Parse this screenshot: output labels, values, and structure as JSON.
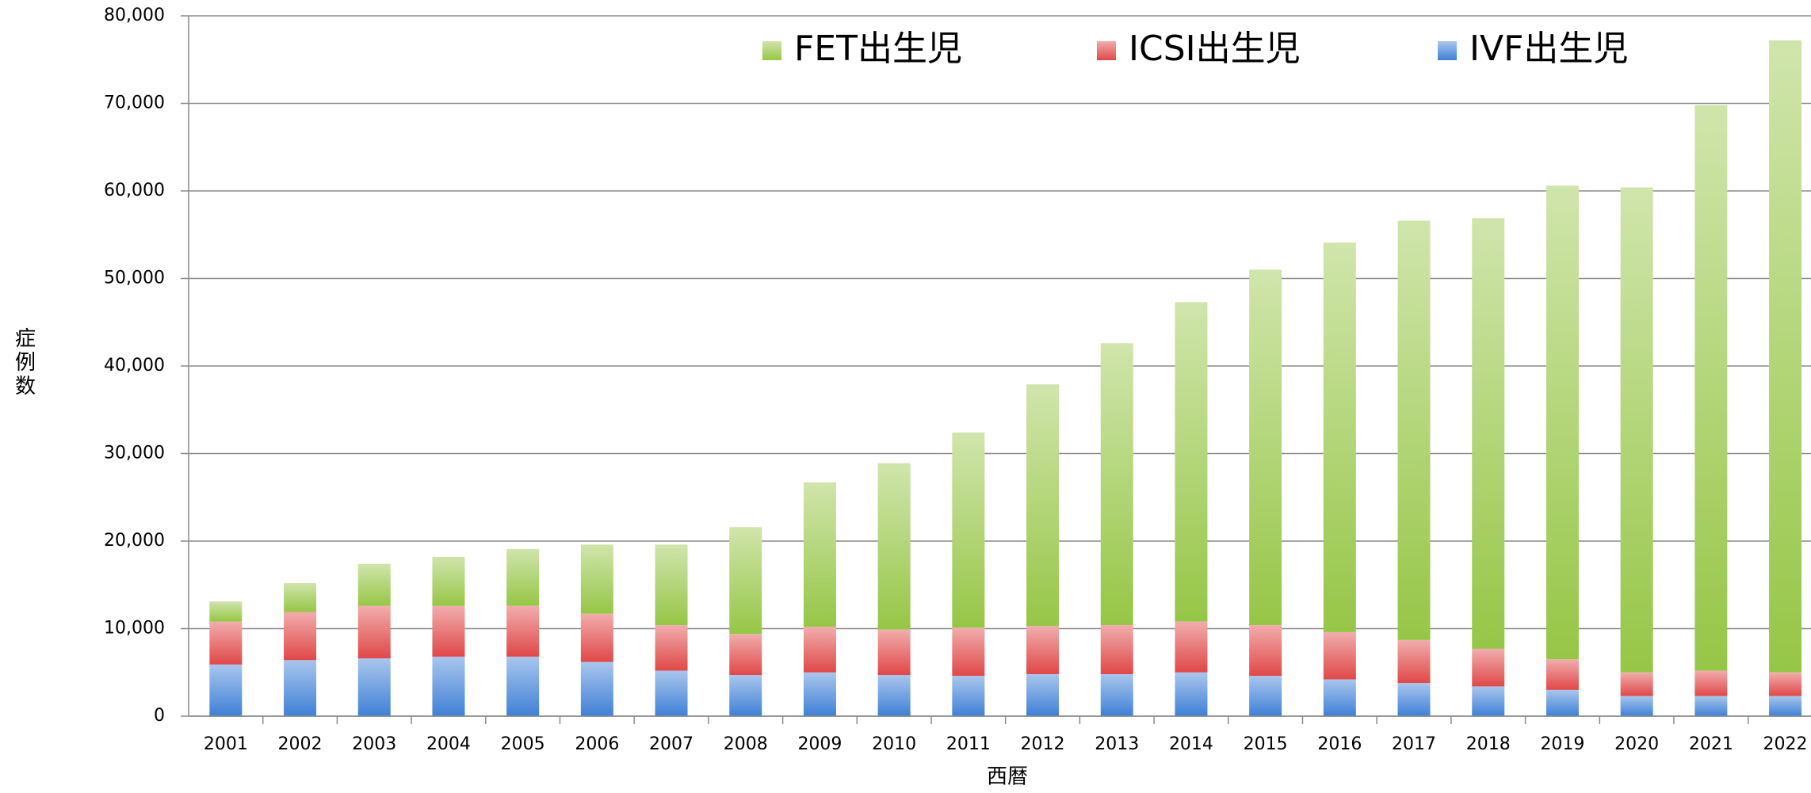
{
  "chart_data": {
    "type": "stacked-bar",
    "x_label": "西暦",
    "y_label": "症例数",
    "categories": [
      "2001",
      "2002",
      "2003",
      "2004",
      "2005",
      "2006",
      "2007",
      "2008",
      "2009",
      "2010",
      "2011",
      "2012",
      "2013",
      "2014",
      "2015",
      "2016",
      "2017",
      "2018",
      "2019",
      "2020",
      "2021",
      "2022"
    ],
    "series": [
      {
        "name": "IVF出生児",
        "color": "#3f80d6",
        "values": [
          5900,
          6400,
          6600,
          6800,
          6800,
          6200,
          5200,
          4700,
          5000,
          4700,
          4600,
          4800,
          4800,
          5000,
          4600,
          4200,
          3800,
          3400,
          3000,
          2300,
          2300,
          2300
        ]
      },
      {
        "name": "ICSI出生児",
        "color": "#e04848",
        "values": [
          4900,
          5500,
          6000,
          5800,
          5800,
          5500,
          5200,
          4700,
          5200,
          5200,
          5500,
          5500,
          5600,
          5800,
          5800,
          5400,
          4900,
          4300,
          3500,
          2700,
          2900,
          2700
        ]
      },
      {
        "name": "FET出生児",
        "color": "#96c646",
        "values": [
          2300,
          3300,
          4800,
          5600,
          6500,
          7900,
          9200,
          12200,
          16500,
          19000,
          22300,
          27600,
          32200,
          36500,
          40600,
          44500,
          47900,
          49200,
          54100,
          55400,
          64600,
          72200
        ]
      }
    ],
    "ylim": [
      0,
      80000
    ],
    "yticks": [
      0,
      {
        "value": 10000,
        "label": "10,000"
      },
      {
        "value": 20000,
        "label": "20,000"
      },
      {
        "value": 30000,
        "label": "30,000"
      },
      {
        "value": 40000,
        "label": "40,000"
      },
      {
        "value": 50000,
        "label": "50,000"
      },
      {
        "value": 60000,
        "label": "60,000"
      },
      {
        "value": 70000,
        "label": "70,000"
      },
      {
        "value": 80000,
        "label": "80,000"
      }
    ],
    "grid": true
  }
}
